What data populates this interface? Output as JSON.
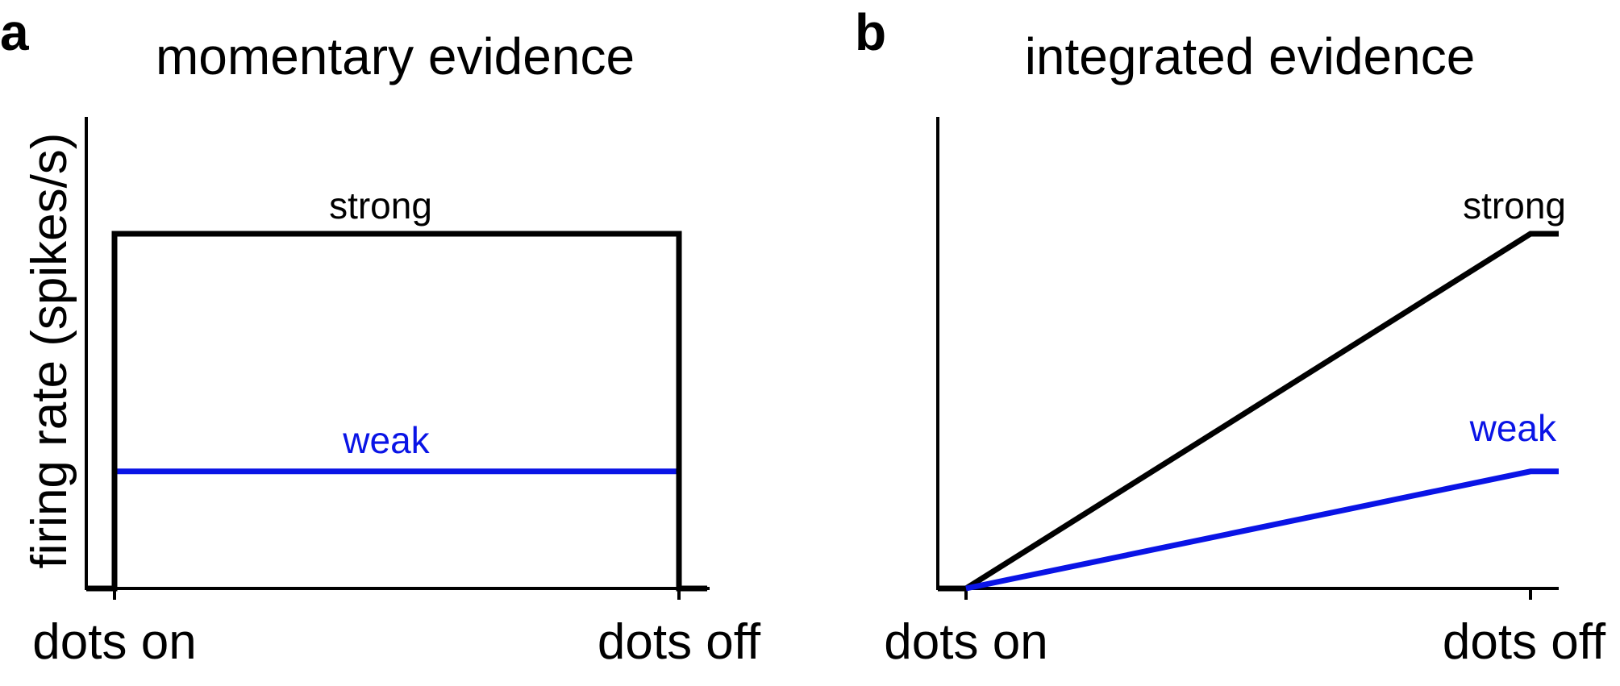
{
  "ylabel": "firing rate (spikes/s)",
  "chart_data": [
    {
      "type": "line",
      "panel": "a",
      "title": "momentary evidence",
      "xlabel": "",
      "ylabel": "firing rate (spikes/s)",
      "x_ticks": [
        "dots on",
        "dots off"
      ],
      "xlim": [
        -0.05,
        1.05
      ],
      "ylim": [
        0,
        1.3
      ],
      "grid": false,
      "series": [
        {
          "name": "strong",
          "color": "#000000",
          "x": [
            -0.05,
            0,
            0,
            1,
            1,
            1.05
          ],
          "y": [
            0,
            0,
            1,
            1,
            0,
            0
          ]
        },
        {
          "name": "weak",
          "color": "#0a14e6",
          "x": [
            0.005,
            0.995
          ],
          "y": [
            0.33,
            0.33
          ]
        }
      ]
    },
    {
      "type": "line",
      "panel": "b",
      "title": "integrated evidence",
      "xlabel": "",
      "ylabel": "",
      "x_ticks": [
        "dots on",
        "dots off"
      ],
      "xlim": [
        -0.05,
        1.05
      ],
      "ylim": [
        0,
        1.3
      ],
      "grid": false,
      "series": [
        {
          "name": "strong",
          "color": "#000000",
          "x": [
            -0.05,
            0,
            1,
            1.05
          ],
          "y": [
            0,
            0,
            1,
            1
          ]
        },
        {
          "name": "weak",
          "color": "#0a14e6",
          "x": [
            0,
            1,
            1.05
          ],
          "y": [
            0,
            0.33,
            0.33
          ]
        }
      ]
    }
  ]
}
